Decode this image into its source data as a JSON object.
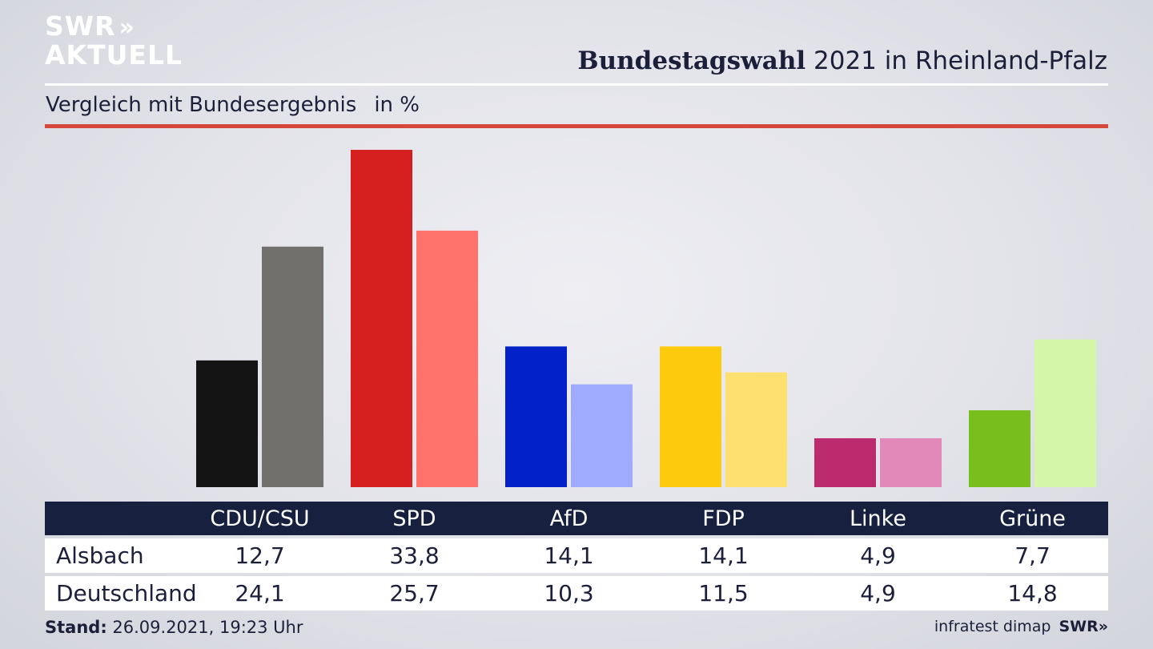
{
  "logo": {
    "line1": "SWR",
    "chevrons": "»",
    "line2": "AKTUELL"
  },
  "header": {
    "title_bold": "Bundestagswahl",
    "title_rest": " 2021 in Rheinland-Pfalz"
  },
  "subtitle": {
    "text": "Vergleich mit Bundesergebnis",
    "unit": "in %"
  },
  "chart_data": {
    "type": "bar",
    "title": "Bundestagswahl 2021 in Rheinland-Pfalz",
    "subtitle": "Vergleich mit Bundesergebnis in %",
    "categories": [
      "CDU/CSU",
      "SPD",
      "AfD",
      "FDP",
      "Linke",
      "Grüne"
    ],
    "series": [
      {
        "name": "Alsbach",
        "values": [
          12.7,
          33.8,
          14.1,
          14.1,
          4.9,
          7.7
        ],
        "colors": [
          "#141414",
          "#d62020",
          "#0221c8",
          "#fdcb0b",
          "#bd2b6f",
          "#78bf1e"
        ]
      },
      {
        "name": "Deutschland",
        "values": [
          24.1,
          25.7,
          10.3,
          11.5,
          4.9,
          14.8
        ],
        "colors": [
          "#72706d",
          "#ff736c",
          "#9eabff",
          "#fde06f",
          "#e189b9",
          "#d4f6a8"
        ]
      }
    ],
    "ylim": [
      0,
      33.8
    ],
    "grid": false
  },
  "footer": {
    "stand_label": "Stand:",
    "stand_value": " 26.09.2021, 19:23 Uhr",
    "source": "infratest dimap",
    "brand": "SWR»"
  }
}
